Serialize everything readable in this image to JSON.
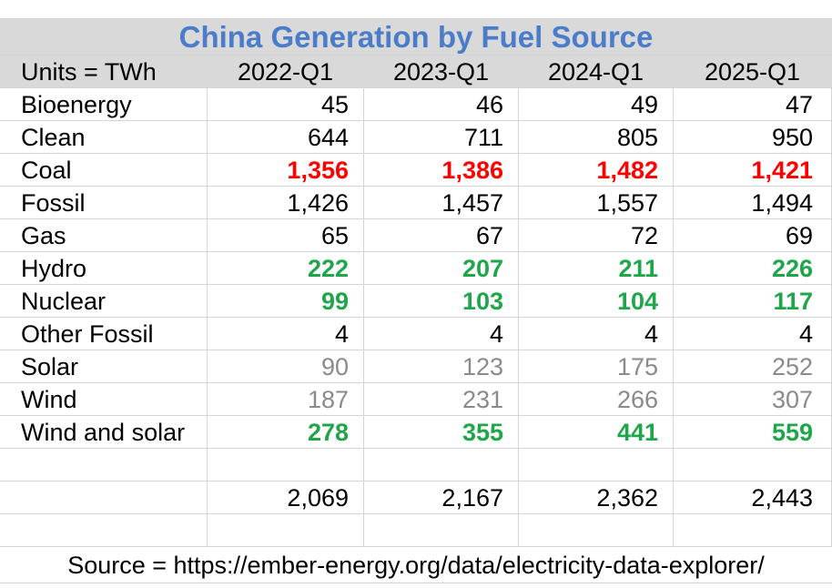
{
  "title": "China Generation by Fuel Source",
  "header": {
    "units": "Units = TWh",
    "columns": [
      "2022-Q1",
      "2023-Q1",
      "2024-Q1",
      "2025-Q1"
    ]
  },
  "rows": [
    {
      "label": "Bioenergy",
      "values": [
        "45",
        "46",
        "49",
        "47"
      ],
      "style": "normal"
    },
    {
      "label": "Clean",
      "values": [
        "644",
        "711",
        "805",
        "950"
      ],
      "style": "normal"
    },
    {
      "label": "Coal",
      "values": [
        "1,356",
        "1,386",
        "1,482",
        "1,421"
      ],
      "style": "red-bold"
    },
    {
      "label": "Fossil",
      "values": [
        "1,426",
        "1,457",
        "1,557",
        "1,494"
      ],
      "style": "normal"
    },
    {
      "label": "Gas",
      "values": [
        "65",
        "67",
        "72",
        "69"
      ],
      "style": "normal"
    },
    {
      "label": "Hydro",
      "values": [
        "222",
        "207",
        "211",
        "226"
      ],
      "style": "green-bold"
    },
    {
      "label": "Nuclear",
      "values": [
        "99",
        "103",
        "104",
        "117"
      ],
      "style": "green-bold"
    },
    {
      "label": "Other Fossil",
      "values": [
        "4",
        "4",
        "4",
        "4"
      ],
      "style": "normal"
    },
    {
      "label": "Solar",
      "values": [
        "90",
        "123",
        "175",
        "252"
      ],
      "style": "grey"
    },
    {
      "label": "Wind",
      "values": [
        "187",
        "231",
        "266",
        "307"
      ],
      "style": "grey"
    },
    {
      "label": "Wind and solar",
      "values": [
        "278",
        "355",
        "441",
        "559"
      ],
      "style": "green-bold"
    }
  ],
  "totals": [
    "2,069",
    "2,167",
    "2,362",
    "2,443"
  ],
  "footer": "Source = https://ember-energy.org/data/electricity-data-explorer/",
  "colors": {
    "title": "#4a7cc9",
    "red": "#ff0000",
    "green": "#1fa64a",
    "grey": "#8a8a8a",
    "header_bg": "#d9d9d9"
  }
}
